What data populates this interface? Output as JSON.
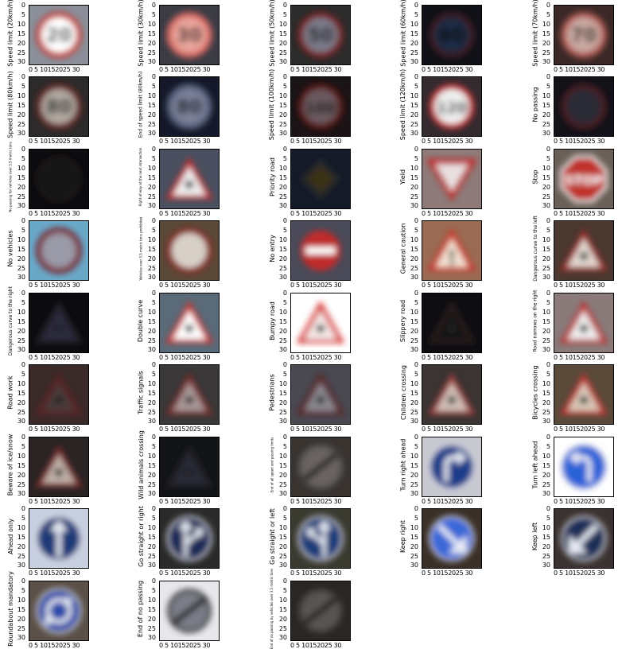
{
  "axis": {
    "yticks": [
      "0",
      "5",
      "10",
      "15",
      "20",
      "25",
      "30"
    ],
    "xticks": "0 5 10152025 30"
  },
  "signs": [
    {
      "label": "Speed limit (20km/h)",
      "shape": "circle",
      "bg": "#8a8f9a",
      "color": "#c83a32",
      "inner": "#ffffff",
      "text": "20"
    },
    {
      "label": "Speed limit (30km/h)",
      "shape": "circle",
      "bg": "#3b3b44",
      "color": "#d76860",
      "inner": "#e9a49b",
      "text": "30"
    },
    {
      "label": "Speed limit (50km/h)",
      "shape": "circle",
      "bg": "#2c2c2c",
      "color": "#7a2020",
      "inner": "#7a7a88",
      "text": "50"
    },
    {
      "label": "Speed limit (60km/h)",
      "shape": "circle",
      "bg": "#101218",
      "color": "#3d1a22",
      "inner": "#1e2a44",
      "text": "60"
    },
    {
      "label": "Speed limit (70km/h)",
      "shape": "circle",
      "bg": "#3a2826",
      "color": "#b25a52",
      "inner": "#c8a8a0",
      "text": "70"
    },
    {
      "label": "Speed limit (80km/h)",
      "shape": "circle",
      "bg": "#2c2a2a",
      "color": "#6a2a28",
      "inner": "#b0a8a0",
      "text": "80"
    },
    {
      "label": "End of speed limit (80km/h)",
      "shape": "circle",
      "bg": "#141828",
      "color": "#55607a",
      "inner": "#7a8098",
      "text": "80"
    },
    {
      "label": "Speed limit (100km/h)",
      "shape": "circle",
      "bg": "#1a1416",
      "color": "#5a1818",
      "inner": "#6a5a5e",
      "text": "100"
    },
    {
      "label": "Speed limit (120km/h)",
      "shape": "circle",
      "bg": "#332b30",
      "color": "#c02a2a",
      "inner": "#eeeeee",
      "text": "120"
    },
    {
      "label": "No passing",
      "shape": "circle",
      "bg": "#121218",
      "color": "#4a1a22",
      "inner": "#2a2a36",
      "text": ""
    },
    {
      "label": "No passing for vehicles over 3.5 metric tons",
      "shape": "circle",
      "bg": "#0c0c10",
      "color": "#1c1418",
      "inner": "#141418",
      "text": ""
    },
    {
      "label": "Right-of-way at the next intersection",
      "shape": "triangle",
      "bg": "#4a5060",
      "color": "#c02a2a",
      "inner": "#eeeeee",
      "text": ""
    },
    {
      "label": "Priority road",
      "shape": "diamond",
      "bg": "#141a28",
      "color": "#2a2a2a",
      "inner": "#3a3018",
      "text": ""
    },
    {
      "label": "Yield",
      "shape": "itriangle",
      "bg": "#8e7a78",
      "color": "#c02a2a",
      "inner": "#e8e0e0",
      "text": ""
    },
    {
      "label": "Stop",
      "shape": "octagon",
      "bg": "#6a6058",
      "color": "#c0302a",
      "inner": "#c0302a",
      "text": "STOP"
    },
    {
      "label": "No vehicles",
      "shape": "circle",
      "bg": "#6aa8c8",
      "color": "#7a1a22",
      "inner": "#9a9aa8",
      "text": ""
    },
    {
      "label": "Vehicles over 3.5 metric tons prohibited",
      "shape": "circle",
      "bg": "#5a4838",
      "color": "#8a2a22",
      "inner": "#d8d0c8",
      "text": ""
    },
    {
      "label": "No entry",
      "shape": "noentry",
      "bg": "#4a4a58",
      "color": "#c02a2a",
      "inner": "#ffffff",
      "text": ""
    },
    {
      "label": "General caution",
      "shape": "triangle",
      "bg": "#9a6a52",
      "color": "#d0302a",
      "inner": "#f0e0d0",
      "text": "!"
    },
    {
      "label": "Dangerous curve to the left",
      "shape": "triangle",
      "bg": "#4a3830",
      "color": "#a02a2a",
      "inner": "#e0d8d0",
      "text": ""
    },
    {
      "label": "Dangerous curve to the right",
      "shape": "triangle",
      "bg": "#0c0c10",
      "color": "#28202a",
      "inner": "#2a2c40",
      "text": ""
    },
    {
      "label": "Double curve",
      "shape": "triangle",
      "bg": "#5a6a78",
      "color": "#d0302a",
      "inner": "#ffffff",
      "text": ""
    },
    {
      "label": "Bumpy road",
      "shape": "triangle",
      "bg": "#ffffff",
      "color": "#d82a2a",
      "inner": "#f4eae8",
      "text": ""
    },
    {
      "label": "Slippery road",
      "shape": "triangle",
      "bg": "#0e0e12",
      "color": "#2a1a1c",
      "inner": "#161418",
      "text": ""
    },
    {
      "label": "Road narrows on the right",
      "shape": "triangle",
      "bg": "#8a7a7a",
      "color": "#c02a2a",
      "inner": "#eeeeee",
      "text": ""
    },
    {
      "label": "Road work",
      "shape": "triangle",
      "bg": "#3a2a2a",
      "color": "#5a2020",
      "inner": "#4a3a3a",
      "text": ""
    },
    {
      "label": "Traffic signals",
      "shape": "triangle",
      "bg": "#3a3838",
      "color": "#7a2a2a",
      "inner": "#a89898",
      "text": ""
    },
    {
      "label": "Pedestrians",
      "shape": "triangle",
      "bg": "#4a4850",
      "color": "#5a2020",
      "inner": "#8a8890",
      "text": ""
    },
    {
      "label": "Children crossing",
      "shape": "triangle",
      "bg": "#3a3432",
      "color": "#9a3a3a",
      "inner": "#d0c0b8",
      "text": ""
    },
    {
      "label": "Bicycles crossing",
      "shape": "triangle",
      "bg": "#5a4a3a",
      "color": "#c03030",
      "inner": "#d8c8b8",
      "text": ""
    },
    {
      "label": "Beware of ice/snow",
      "shape": "triangle",
      "bg": "#2a2424",
      "color": "#7a2a2a",
      "inner": "#c0b0a8",
      "text": ""
    },
    {
      "label": "Wild animals crossing",
      "shape": "triangle",
      "bg": "#121418",
      "color": "#222028",
      "inner": "#2a2c38",
      "text": ""
    },
    {
      "label": "End of all speed and passing limits",
      "shape": "endall",
      "bg": "#3a3430",
      "color": "#5a5a5a",
      "inner": "#6a6460",
      "text": ""
    },
    {
      "label": "Turn right ahead",
      "shape": "bluecircle",
      "bg": "#c8c8d0",
      "color": "#1e3c8a",
      "inner": "#1e3c8a",
      "text": "right"
    },
    {
      "label": "Turn left ahead",
      "shape": "bluecircle",
      "bg": "#ffffff",
      "color": "#2a62d8",
      "inner": "#2a62d8",
      "text": "left"
    },
    {
      "label": "Ahead only",
      "shape": "bluecircle",
      "bg": "#c8d0e0",
      "color": "#1c3a78",
      "inner": "#1c3a78",
      "text": "up"
    },
    {
      "label": "Go straight or right",
      "shape": "bluecircle",
      "bg": "#2a2a2a",
      "color": "#1a2a58",
      "inner": "#1a2a58",
      "text": "upright"
    },
    {
      "label": "Go straight or left",
      "shape": "bluecircle",
      "bg": "#3a3a30",
      "color": "#1e3c7a",
      "inner": "#1e3c7a",
      "text": "upleft"
    },
    {
      "label": "Keep right",
      "shape": "bluecircle",
      "bg": "#3a3028",
      "color": "#3a68d8",
      "inner": "#3a68d8",
      "text": "keepright"
    },
    {
      "label": "Keep left",
      "shape": "bluecircle",
      "bg": "#3a3230",
      "color": "#1e2e58",
      "inner": "#1e2e58",
      "text": "keepleft"
    },
    {
      "label": "Roundabout mandatory",
      "shape": "bluecircle",
      "bg": "#5a5048",
      "color": "#2a4aa8",
      "inner": "#2a4aa8",
      "text": "round"
    },
    {
      "label": "End of no passing",
      "shape": "endall",
      "bg": "#e8e8ec",
      "color": "#3a3a3a",
      "inner": "#7a7e88",
      "text": ""
    },
    {
      "label": "End of no passing by vehicles over 3.5 metric tons",
      "shape": "endall",
      "bg": "#2a2624",
      "color": "#4a4442",
      "inner": "#5a5452",
      "text": ""
    }
  ]
}
